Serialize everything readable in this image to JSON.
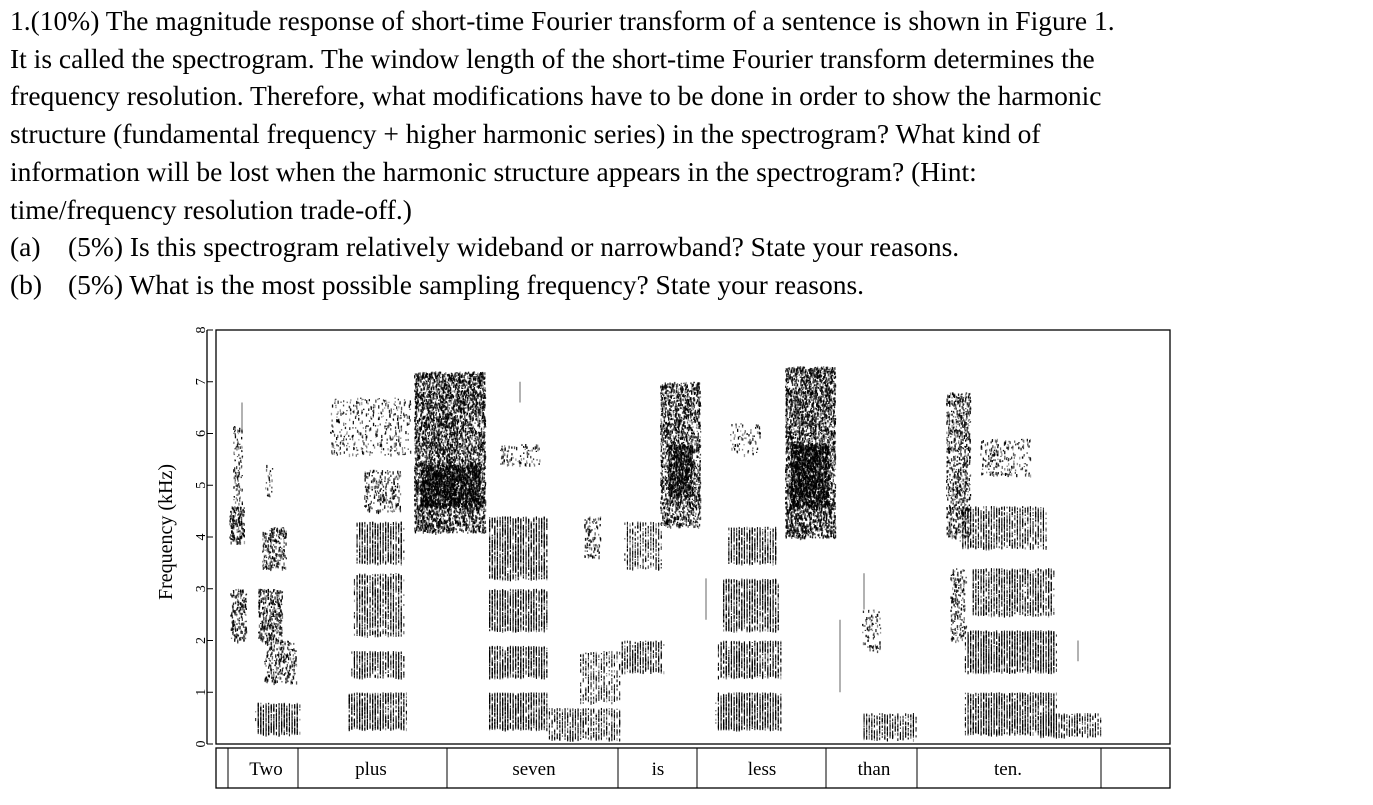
{
  "question": {
    "lines": [
      "1.(10%) The magnitude response of short-time Fourier transform of a sentence is shown in Figure 1.",
      "It is called the spectrogram. The window length of the short-time Fourier transform determines the",
      "frequency resolution. Therefore, what modifications have to be done in order to show the harmonic",
      "structure (fundamental frequency + higher harmonic series) in the spectrogram? What kind of",
      "information will be lost when the harmonic structure appears in the spectrogram? (Hint:",
      "time/frequency resolution trade-off.)"
    ],
    "parts": [
      {
        "label": "(a)",
        "text": "(5%) Is this spectrogram relatively wideband or narrowband? State your reasons."
      },
      {
        "label": "(b)",
        "text": "(5%) What is the most possible sampling frequency? State your reasons."
      }
    ]
  },
  "chart_data": {
    "type": "heatmap",
    "ylabel": "Frequency (kHz)",
    "ylim": [
      0,
      8
    ],
    "yticks": [
      "0",
      "1",
      "2",
      "3",
      "4",
      "5",
      "6",
      "7",
      "8"
    ],
    "words": [
      "Two",
      "plus",
      "seven",
      "is",
      "less",
      "than",
      "ten."
    ],
    "ink_color": "#000000"
  }
}
